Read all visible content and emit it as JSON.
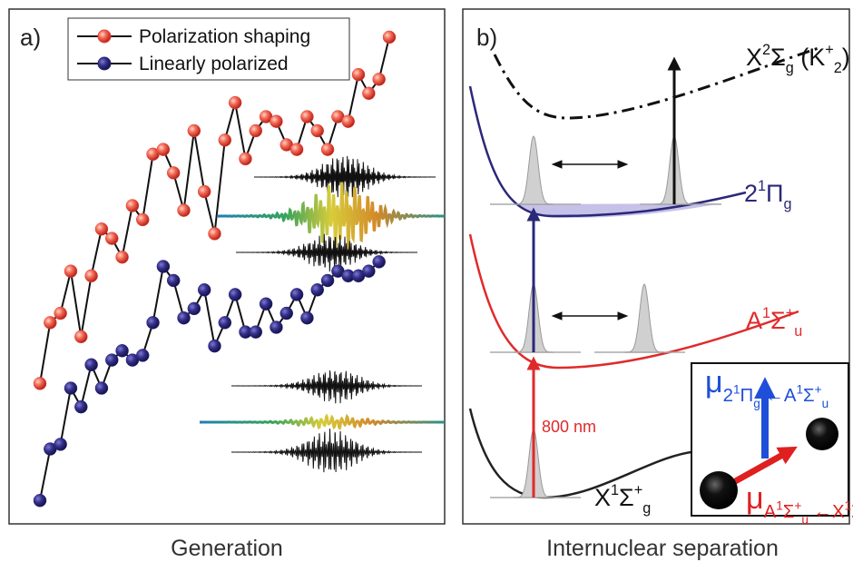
{
  "chart_data": {
    "type": "line",
    "title": "a)",
    "x_label": "Generation",
    "markers": true,
    "xlim": [
      1,
      35
    ],
    "ylim": [
      0,
      110
    ],
    "series": [
      {
        "name": "Polarization shaping",
        "color": "#e8433a",
        "x": [
          1,
          2,
          3,
          4,
          5,
          6,
          7,
          8,
          9,
          10,
          11,
          12,
          13,
          14,
          15,
          16,
          17,
          18,
          19,
          20,
          21,
          22,
          23,
          24,
          25,
          26,
          27,
          28,
          29,
          30,
          31,
          32,
          33,
          34,
          35
        ],
        "values": [
          30,
          43,
          45,
          54,
          40,
          53,
          63,
          61,
          57,
          68,
          65,
          79,
          80,
          75,
          67,
          84,
          71,
          62,
          82,
          90,
          78,
          84,
          87,
          86,
          81,
          80,
          87,
          84,
          80,
          87,
          86,
          96,
          92,
          95,
          104
        ]
      },
      {
        "name": "Linearly polarized",
        "color": "#2b2878",
        "x": [
          1,
          2,
          3,
          4,
          5,
          6,
          7,
          8,
          9,
          10,
          11,
          12,
          13,
          14,
          15,
          16,
          17,
          18,
          19,
          20,
          21,
          22,
          23,
          24,
          25,
          26,
          27,
          28,
          29,
          30,
          31,
          32,
          33,
          34
        ],
        "values": [
          5,
          16,
          17,
          29,
          25,
          34,
          29,
          35,
          37,
          35,
          36,
          43,
          55,
          52,
          44,
          46,
          50,
          38,
          43,
          49,
          41,
          41,
          47,
          42,
          45,
          49,
          44,
          50,
          52,
          54,
          53,
          53,
          54,
          56
        ]
      }
    ]
  },
  "diagram": {
    "title": "b)",
    "x_label": "Internuclear separation",
    "labels": [
      {
        "parts": [
          {
            "text": "X"
          },
          {
            "text": "2",
            "pos": "sup"
          },
          {
            "text": "Σ"
          },
          {
            "text": "g",
            "pos": "sub"
          },
          {
            "text": " (K"
          },
          {
            "text": "+",
            "pos": "sup"
          },
          {
            "text": "2",
            "pos": "sub"
          },
          {
            "text": ")"
          }
        ]
      },
      {
        "parts": [
          {
            "text": "2"
          },
          {
            "text": "1",
            "pos": "sup"
          },
          {
            "text": "Π"
          },
          {
            "text": "g",
            "pos": "sub"
          }
        ]
      },
      {
        "parts": [
          {
            "text": "A"
          },
          {
            "text": "1",
            "pos": "sup"
          },
          {
            "text": "Σ"
          },
          {
            "text": "+",
            "pos": "sup"
          },
          {
            "text": "u",
            "pos": "sub"
          }
        ]
      },
      {
        "parts": [
          {
            "text": "X"
          },
          {
            "text": "1",
            "pos": "sup"
          },
          {
            "text": "Σ"
          },
          {
            "text": "+",
            "pos": "sup"
          },
          {
            "text": "g",
            "pos": "sub"
          }
        ]
      },
      {
        "parts": [
          {
            "text": "800 nm"
          }
        ]
      },
      {
        "parts": [
          {
            "text": "μ"
          },
          {
            "text": "2",
            "pos": "sub"
          },
          {
            "text": "1",
            "pos": "subsup"
          },
          {
            "text": "Π",
            "pos": "sub"
          },
          {
            "text": "g",
            "pos": "subsub"
          },
          {
            "text": " ←A",
            "pos": "sub"
          },
          {
            "text": "1",
            "pos": "subsup"
          },
          {
            "text": "Σ",
            "pos": "sub"
          },
          {
            "text": "+",
            "pos": "subsup"
          },
          {
            "text": "u",
            "pos": "subsub"
          }
        ]
      },
      {
        "parts": [
          {
            "text": "μ"
          },
          {
            "text": "A",
            "pos": "sub"
          },
          {
            "text": "1",
            "pos": "subsup"
          },
          {
            "text": "Σ",
            "pos": "sub"
          },
          {
            "text": "+",
            "pos": "subsup"
          },
          {
            "text": "u",
            "pos": "subsub"
          },
          {
            "text": " ←X",
            "pos": "sub"
          },
          {
            "text": "1",
            "pos": "subsup"
          },
          {
            "text": "Σ",
            "pos": "sub"
          },
          {
            "text": "+",
            "pos": "subsup"
          },
          {
            "text": "g",
            "pos": "subsub"
          }
        ]
      }
    ]
  }
}
